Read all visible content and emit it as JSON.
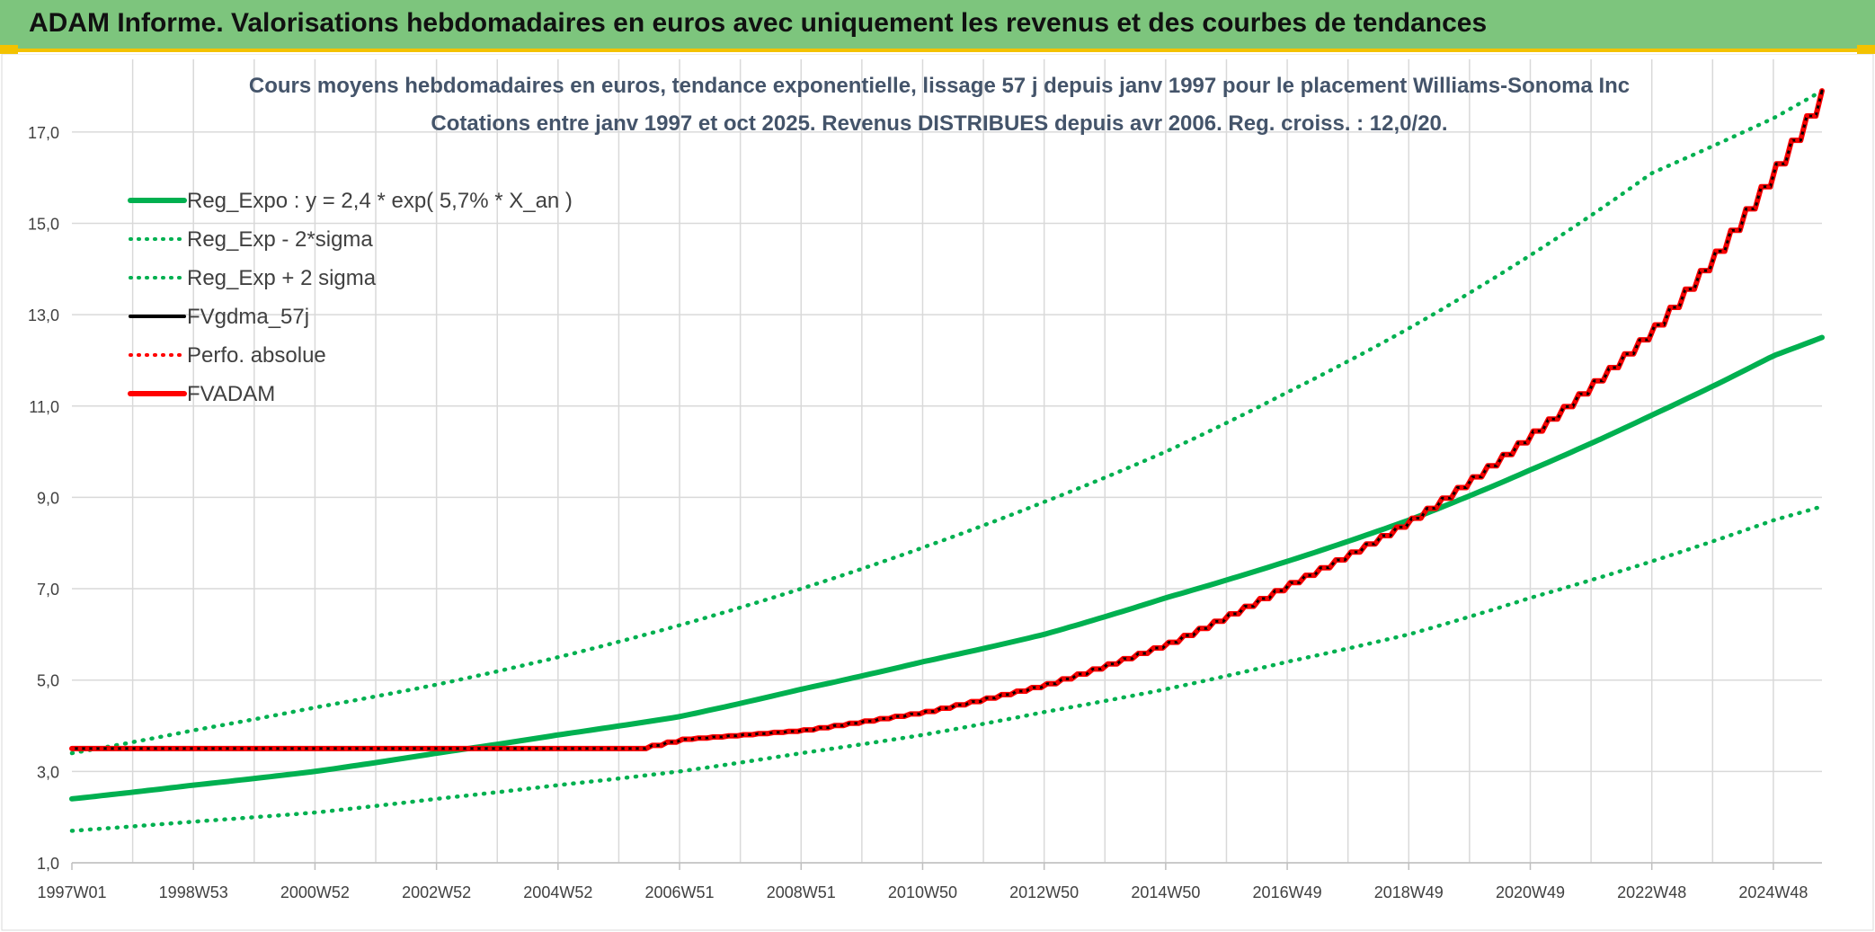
{
  "header": {
    "title": "ADAM Informe. Valorisations hebdomadaires en euros avec uniquement les revenus et des courbes de tendances"
  },
  "colors": {
    "header_bg": "#7dc57d",
    "accent_yellow": "#f3c200",
    "trend_green": "#00b050",
    "red": "#ff0000",
    "black": "#000000",
    "grid": "#d9d9d9",
    "title": "#44546a"
  },
  "chart_data": {
    "type": "line",
    "title_line1": "Cours moyens hebdomadaires en euros, tendance exponentielle, lissage 57 j depuis janv 1997 pour le placement Williams-Sonoma Inc",
    "title_line2": "Cotations entre janv 1997 et oct 2025. Revenus DISTRIBUES depuis avr 2006. Reg. croiss. : 12,0/20.",
    "xlabel": "",
    "ylabel": "",
    "x_range": [
      1997.0,
      2025.8
    ],
    "ylim": [
      1.0,
      18.0
    ],
    "y_ticks": [
      "1,0",
      "3,0",
      "5,0",
      "7,0",
      "9,0",
      "11,0",
      "13,0",
      "15,0",
      "17,0"
    ],
    "y_tick_values": [
      1,
      3,
      5,
      7,
      9,
      11,
      13,
      15,
      17
    ],
    "x_tick_labels": [
      "1997W01",
      "1998W53",
      "2000W52",
      "2002W52",
      "2004W52",
      "2006W51",
      "2008W51",
      "2010W50",
      "2012W50",
      "2014W50",
      "2016W49",
      "2018W49",
      "2020W49",
      "2022W48",
      "2024W48"
    ],
    "x_tick_years": [
      1997.0,
      1999.0,
      2001.0,
      2003.0,
      2005.0,
      2007.0,
      2009.0,
      2011.0,
      2013.0,
      2015.0,
      2017.0,
      2019.0,
      2021.0,
      2023.0,
      2025.0
    ],
    "grid": true,
    "legend_position": "top-left",
    "legend": [
      {
        "label": "Reg_Expo : y = 2,4 * exp( 5,7% *  X_an )",
        "color": "#00b050",
        "style": "solid-thick"
      },
      {
        "label": "Reg_Exp - 2*sigma",
        "color": "#00b050",
        "style": "dotted"
      },
      {
        "label": "Reg_Exp + 2 sigma",
        "color": "#00b050",
        "style": "dotted"
      },
      {
        "label": "FVgdma_57j",
        "color": "#000000",
        "style": "solid"
      },
      {
        "label": "Perfo. absolue",
        "color": "#ff0000",
        "style": "dotted"
      },
      {
        "label": "FVADAM",
        "color": "#ff0000",
        "style": "solid-thick"
      }
    ],
    "series": [
      {
        "name": "Reg_Expo : y = 2,4 * exp( 5,7% *  X_an )",
        "x": [
          1997,
          1999,
          2001,
          2003,
          2005,
          2007,
          2009,
          2011,
          2013,
          2015,
          2017,
          2019,
          2021,
          2023,
          2025,
          2025.8
        ],
        "values": [
          2.4,
          2.7,
          3.0,
          3.4,
          3.8,
          4.2,
          4.8,
          5.4,
          6.0,
          6.8,
          7.6,
          8.5,
          9.6,
          10.8,
          12.1,
          12.5
        ]
      },
      {
        "name": "Reg_Exp - 2*sigma",
        "x": [
          1997,
          1999,
          2001,
          2003,
          2005,
          2007,
          2009,
          2011,
          2013,
          2015,
          2017,
          2019,
          2021,
          2023,
          2025,
          2025.8
        ],
        "values": [
          1.7,
          1.9,
          2.1,
          2.4,
          2.7,
          3.0,
          3.4,
          3.8,
          4.3,
          4.8,
          5.4,
          6.0,
          6.8,
          7.6,
          8.5,
          8.8
        ]
      },
      {
        "name": "Reg_Exp + 2 sigma",
        "x": [
          1997,
          1999,
          2001,
          2003,
          2005,
          2007,
          2009,
          2011,
          2013,
          2015,
          2017,
          2019,
          2021,
          2023,
          2025,
          2025.8
        ],
        "values": [
          3.4,
          3.9,
          4.4,
          4.9,
          5.5,
          6.2,
          7.0,
          7.9,
          8.9,
          10.0,
          11.3,
          12.7,
          14.3,
          16.1,
          17.3,
          17.9
        ]
      },
      {
        "name": "FVgdma_57j",
        "x": [
          1997,
          2003,
          2006.3,
          2007,
          2009,
          2011,
          2013,
          2015,
          2017,
          2019,
          2021,
          2023,
          2024,
          2025,
          2025.8
        ],
        "values": [
          3.5,
          3.5,
          3.5,
          3.7,
          3.9,
          4.3,
          4.9,
          5.8,
          7.1,
          8.5,
          10.4,
          12.7,
          14.3,
          16.2,
          17.9
        ]
      },
      {
        "name": "Perfo. absolue",
        "x": [
          1997,
          2003,
          2006.3,
          2007,
          2009,
          2011,
          2013,
          2015,
          2017,
          2019,
          2021,
          2023,
          2024,
          2025,
          2025.8
        ],
        "values": [
          3.5,
          3.5,
          3.5,
          3.7,
          3.9,
          4.3,
          4.9,
          5.8,
          7.1,
          8.5,
          10.4,
          12.7,
          14.3,
          16.2,
          17.9
        ]
      },
      {
        "name": "FVADAM",
        "x": [
          1997,
          2003,
          2006.3,
          2007,
          2009,
          2011,
          2013,
          2015,
          2017,
          2019,
          2021,
          2023,
          2024,
          2025,
          2025.8
        ],
        "values": [
          3.5,
          3.5,
          3.5,
          3.7,
          3.9,
          4.3,
          4.9,
          5.8,
          7.1,
          8.5,
          10.4,
          12.7,
          14.3,
          16.2,
          17.9
        ]
      }
    ]
  }
}
